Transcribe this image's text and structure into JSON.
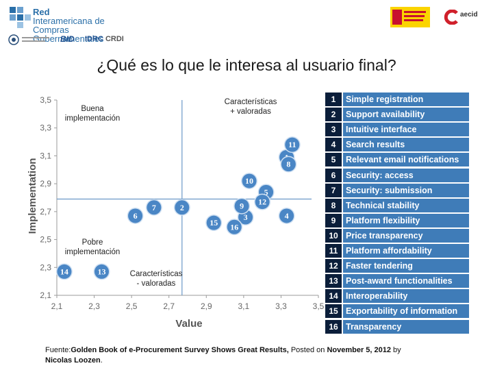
{
  "header": {
    "logo_line1": "Red",
    "logo_line2": "Interamericana de",
    "logo_line3": "Compras Gubernamentales",
    "partner_bid": "BID",
    "partner_idrc": "IDRC",
    "partner_crdi": "CRDI",
    "partner_aecid": "aecid"
  },
  "title": "¿Qué es lo que le interesa al usuario final?",
  "chart_data": {
    "type": "scatter",
    "xlabel": "Value",
    "ylabel": "Implementation",
    "xlim": [
      2.1,
      3.5
    ],
    "ylim": [
      2.1,
      3.5
    ],
    "xticks": [
      "2,1",
      "2,3",
      "2,5",
      "2,7",
      "2,9",
      "3,1",
      "3,3",
      "3,5"
    ],
    "yticks": [
      "2,1",
      "2,3",
      "2,5",
      "2,7",
      "2,9",
      "3,1",
      "3,3",
      "3,5"
    ],
    "reference_lines": {
      "x": 2.77,
      "y": 2.79
    },
    "quadrant_labels": [
      {
        "lines": [
          "Buena",
          "implementación"
        ]
      },
      {
        "lines": [
          "Características",
          "+ valoradas"
        ]
      },
      {
        "lines": [
          "Pobre",
          "implementación"
        ]
      },
      {
        "lines": [
          "Características",
          "- valoradas"
        ]
      }
    ],
    "points": [
      {
        "label": "1",
        "x": 3.33,
        "y": 3.09
      },
      {
        "label": "2",
        "x": 2.77,
        "y": 2.73
      },
      {
        "label": "3",
        "x": 3.11,
        "y": 2.66
      },
      {
        "label": "4",
        "x": 3.33,
        "y": 2.67
      },
      {
        "label": "5",
        "x": 3.22,
        "y": 2.84
      },
      {
        "label": "6",
        "x": 2.52,
        "y": 2.67
      },
      {
        "label": "7",
        "x": 2.62,
        "y": 2.73
      },
      {
        "label": "8",
        "x": 3.34,
        "y": 3.04
      },
      {
        "label": "9",
        "x": 3.09,
        "y": 2.74
      },
      {
        "label": "10",
        "x": 3.13,
        "y": 2.92
      },
      {
        "label": "11",
        "x": 3.36,
        "y": 3.18
      },
      {
        "label": "12",
        "x": 3.2,
        "y": 2.77
      },
      {
        "label": "13",
        "x": 2.34,
        "y": 2.27
      },
      {
        "label": "14",
        "x": 2.14,
        "y": 2.27
      },
      {
        "label": "15",
        "x": 2.94,
        "y": 2.62
      },
      {
        "label": "16",
        "x": 3.05,
        "y": 2.59
      }
    ],
    "colors": {
      "bubble": "#4a86c5",
      "bubble_edge": "#cfe0f2",
      "refline": "#6a98c8",
      "frame": "#9a9a9a"
    }
  },
  "legend": [
    {
      "num": "1",
      "label": "Simple registration"
    },
    {
      "num": "2",
      "label": "Support availability"
    },
    {
      "num": "3",
      "label": "Intuitive interface"
    },
    {
      "num": "4",
      "label": "Search results"
    },
    {
      "num": "5",
      "label": "Relevant email notifications"
    },
    {
      "num": "6",
      "label": "Security: access"
    },
    {
      "num": "7",
      "label": "Security: submission"
    },
    {
      "num": "8",
      "label": "Technical stability"
    },
    {
      "num": "9",
      "label": "Platform flexibility"
    },
    {
      "num": "10",
      "label": "Price transparency"
    },
    {
      "num": "11",
      "label": "Platform affordability"
    },
    {
      "num": "12",
      "label": "Faster tendering"
    },
    {
      "num": "13",
      "label": "Post-award functionalities"
    },
    {
      "num": "14",
      "label": "Interoperability"
    },
    {
      "num": "15",
      "label": "Exportability of information"
    },
    {
      "num": "16",
      "label": "Transparency"
    }
  ],
  "footer": {
    "prefix": "Fuente:",
    "source_title": "Golden Book of e-Procurement Survey Shows Great Results,",
    "posted": " Posted on ",
    "date": "November 5, 2012",
    "by": " by ",
    "author": "Nicolas Loozen",
    "period": "."
  }
}
